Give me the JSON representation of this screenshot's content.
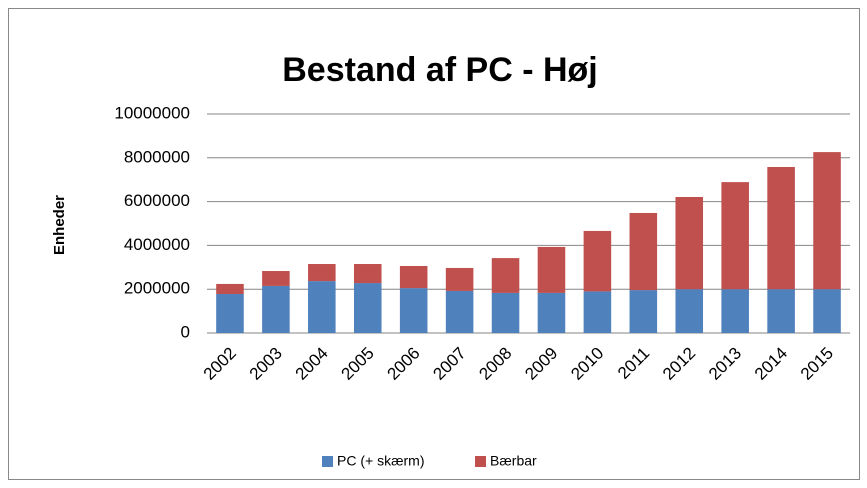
{
  "chart_data": {
    "type": "stacked_bar",
    "title": "Bestand af PC - Høj",
    "y_label": "Enheder",
    "categories": [
      "2002",
      "2003",
      "2004",
      "2005",
      "2006",
      "2007",
      "2008",
      "2009",
      "2010",
      "2011",
      "2012",
      "2013",
      "2014",
      "2015"
    ],
    "series": [
      {
        "name": "PC (+ skærm)",
        "color": "#4f81bd",
        "values": [
          1780000,
          2150000,
          2370000,
          2280000,
          2050000,
          1920000,
          1830000,
          1830000,
          1900000,
          1960000,
          2000000,
          2000000,
          2000000,
          2000000
        ]
      },
      {
        "name": "Bærbar",
        "color": "#c0504d",
        "values": [
          460000,
          680000,
          780000,
          870000,
          1010000,
          1050000,
          1590000,
          2100000,
          2760000,
          3520000,
          4210000,
          4890000,
          5580000,
          6260000
        ]
      }
    ],
    "ylim": [
      0,
      10000000
    ],
    "yticks": [
      0,
      2000000,
      4000000,
      6000000,
      8000000,
      10000000
    ],
    "grid": true,
    "legend": "bottom"
  }
}
